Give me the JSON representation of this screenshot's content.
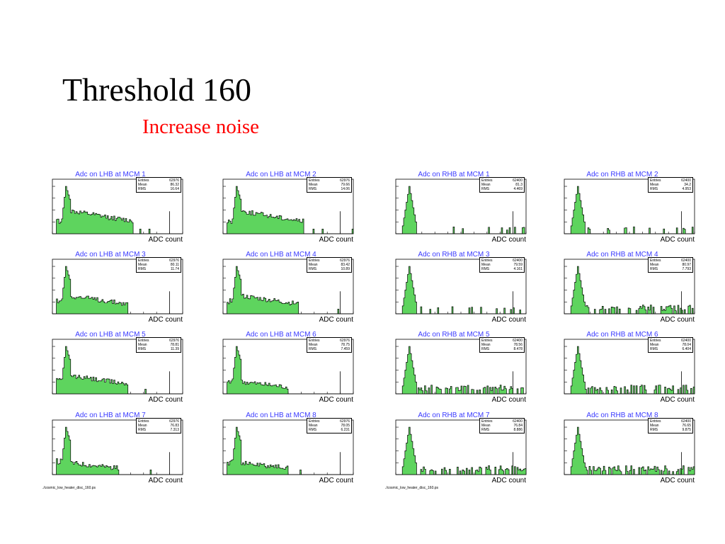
{
  "slide": {
    "title": "Threshold 160",
    "subtitle": "Increase noise",
    "footer_left": "./cosmic_low_heater_disc_160.ps",
    "footer_right": "./cosmic_low_heater_disc_160.ps",
    "colors": {
      "title": "#000000",
      "subtitle": "#ff0000",
      "hist_fill": "#5ed45e",
      "hist_title": "#3a3aff"
    }
  },
  "chart_data": [
    {
      "type": "bar",
      "title": "Adc on LHB at MCM 1",
      "xlabel": "ADC count",
      "xlim": [
        0,
        1024
      ],
      "ylim_log": [
        1,
        100000
      ],
      "stats": {
        "Entries": "62976",
        "Mean": "86.32",
        "RMS": "16.64"
      },
      "shape": "lhb_high"
    },
    {
      "type": "bar",
      "title": "Adc on LHB at MCM 2",
      "xlabel": "ADC count",
      "xlim": [
        0,
        1024
      ],
      "ylim_log": [
        1,
        100000
      ],
      "stats": {
        "Entries": "62976",
        "Mean": "79.66",
        "RMS": "14.06"
      },
      "shape": "lhb_high"
    },
    {
      "type": "bar",
      "title": "Adc on RHB at MCM 1",
      "xlabel": "ADC count",
      "xlim": [
        0,
        1024
      ],
      "ylim_log": [
        1,
        100000
      ],
      "stats": {
        "Entries": "62400",
        "Mean": "81.3",
        "RMS": "4.469"
      },
      "shape": "rhb_clean"
    },
    {
      "type": "bar",
      "title": "Adc on RHB at MCM 2",
      "xlabel": "ADC count",
      "xlim": [
        0,
        1024
      ],
      "ylim_log": [
        1,
        100000
      ],
      "stats": {
        "Entries": "62400",
        "Mean": "34.2",
        "RMS": "4.953"
      },
      "shape": "rhb_clean"
    },
    {
      "type": "bar",
      "title": "Adc on LHB at MCM 3",
      "xlabel": "ADC count",
      "xlim": [
        0,
        1024
      ],
      "ylim_log": [
        1,
        100000
      ],
      "stats": {
        "Entries": "62976",
        "Mean": "80.11",
        "RMS": "11.74"
      },
      "shape": "lhb_mid"
    },
    {
      "type": "bar",
      "title": "Adc on LHB at MCM 4",
      "xlabel": "ADC count",
      "xlim": [
        0,
        1024
      ],
      "ylim_log": [
        1,
        100000
      ],
      "stats": {
        "Entries": "62976",
        "Mean": "83.42",
        "RMS": "10.89"
      },
      "shape": "lhb_mid"
    },
    {
      "type": "bar",
      "title": "Adc on RHB at MCM 3",
      "xlabel": "ADC count",
      "xlim": [
        0,
        1024
      ],
      "ylim_log": [
        1,
        100000
      ],
      "stats": {
        "Entries": "62400",
        "Mean": "79.59",
        "RMS": "4.161"
      },
      "shape": "rhb_clean"
    },
    {
      "type": "bar",
      "title": "Adc on RHB at MCM 4",
      "xlabel": "ADC count",
      "xlim": [
        0,
        1024
      ],
      "ylim_log": [
        1,
        100000
      ],
      "stats": {
        "Entries": "62400",
        "Mean": "80.97",
        "RMS": "7.793"
      },
      "shape": "rhb_tail"
    },
    {
      "type": "bar",
      "title": "Adc on LHB at MCM 5",
      "xlabel": "ADC count",
      "xlim": [
        0,
        1024
      ],
      "ylim_log": [
        1,
        100000
      ],
      "stats": {
        "Entries": "62976",
        "Mean": "78.81",
        "RMS": "11.39"
      },
      "shape": "lhb_mid"
    },
    {
      "type": "bar",
      "title": "Adc on LHB at MCM 6",
      "xlabel": "ADC count",
      "xlim": [
        0,
        1024
      ],
      "ylim_log": [
        1,
        100000
      ],
      "stats": {
        "Entries": "62976",
        "Mean": "78.75",
        "RMS": "7.459"
      },
      "shape": "lhb_low"
    },
    {
      "type": "bar",
      "title": "Adc on RHB at MCM 5",
      "xlabel": "ADC count",
      "xlim": [
        0,
        1024
      ],
      "ylim_log": [
        1,
        100000
      ],
      "stats": {
        "Entries": "62400",
        "Mean": "78.56",
        "RMS": "8.478"
      },
      "shape": "rhb_tail"
    },
    {
      "type": "bar",
      "title": "Adc on RHB at MCM 6",
      "xlabel": "ADC count",
      "xlim": [
        0,
        1024
      ],
      "ylim_log": [
        1,
        100000
      ],
      "stats": {
        "Entries": "62400",
        "Mean": "78.04",
        "RMS": "6.404"
      },
      "shape": "rhb_tail"
    },
    {
      "type": "bar",
      "title": "Adc on LHB at MCM 7",
      "xlabel": "ADC count",
      "xlim": [
        0,
        1024
      ],
      "ylim_log": [
        1,
        100000
      ],
      "stats": {
        "Entries": "62976",
        "Mean": "76.83",
        "RMS": "7.313"
      },
      "shape": "lhb_low"
    },
    {
      "type": "bar",
      "title": "Adc on LHB at MCM 8",
      "xlabel": "ADC count",
      "xlim": [
        0,
        1024
      ],
      "ylim_log": [
        1,
        100000
      ],
      "stats": {
        "Entries": "62976",
        "Mean": "78.05",
        "RMS": "6.231"
      },
      "shape": "lhb_low"
    },
    {
      "type": "bar",
      "title": "Adc on RHB at MCM 7",
      "xlabel": "ADC count",
      "xlim": [
        0,
        1024
      ],
      "ylim_log": [
        1,
        100000
      ],
      "stats": {
        "Entries": "62400",
        "Mean": "76.84",
        "RMS": "8.886"
      },
      "shape": "rhb_tail"
    },
    {
      "type": "bar",
      "title": "Adc on RHB at MCM 8",
      "xlabel": "ADC count",
      "xlim": [
        0,
        1024
      ],
      "ylim_log": [
        1,
        100000
      ],
      "stats": {
        "Entries": "62400",
        "Mean": "76.65",
        "RMS": "9.875"
      },
      "shape": "rhb_tail"
    }
  ]
}
